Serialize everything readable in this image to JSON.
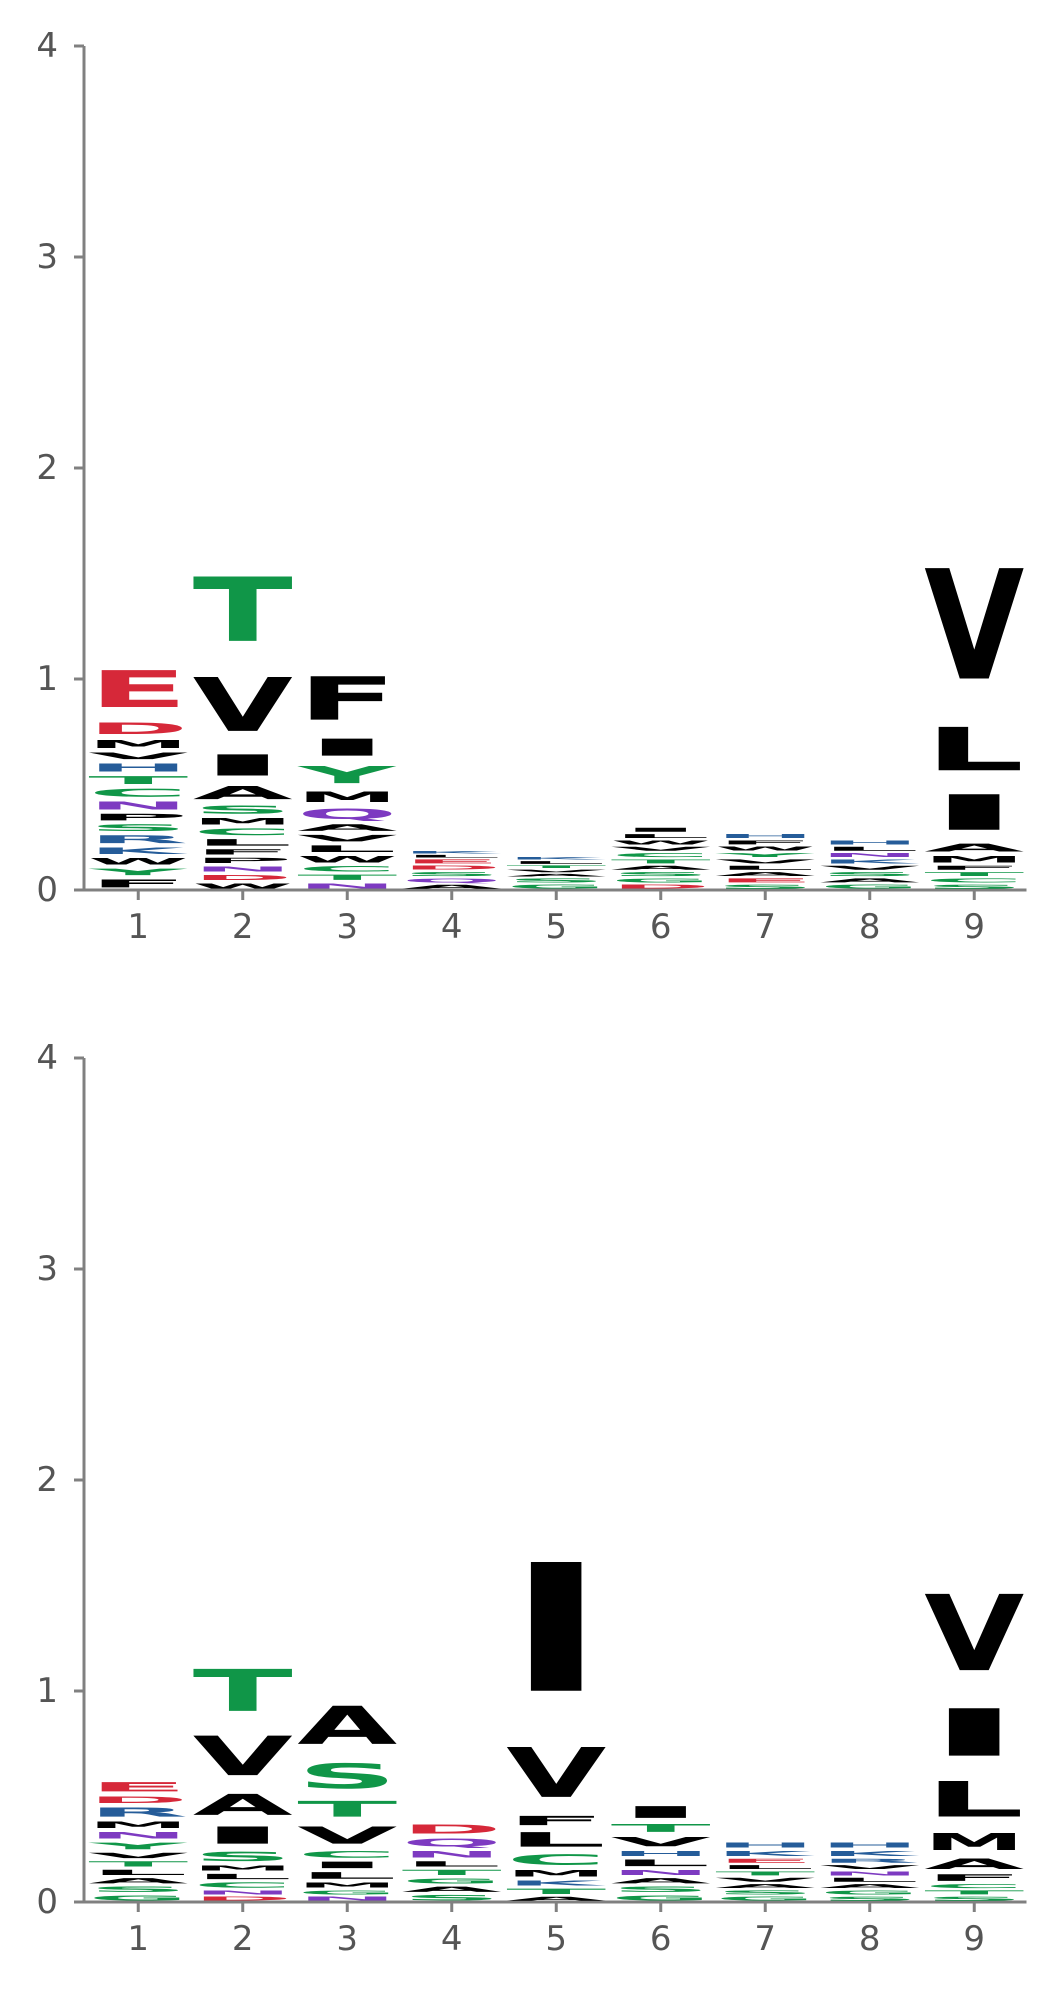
{
  "chart_data": [
    {
      "type": "sequence-logo",
      "title": "",
      "xlabel": "",
      "ylabel": "",
      "ylim": [
        0,
        4
      ],
      "yticks": [
        0,
        1,
        2,
        3,
        4
      ],
      "positions": [
        1,
        2,
        3,
        4,
        5,
        6,
        7,
        8,
        9
      ],
      "stacks": [
        [
          [
            "F",
            0.06,
            "#000000"
          ],
          [
            "Y",
            0.05,
            "#109648"
          ],
          [
            "W",
            0.05,
            "#000000"
          ],
          [
            "K",
            0.05,
            "#255C99"
          ],
          [
            "R",
            0.06,
            "#255C99"
          ],
          [
            "S",
            0.05,
            "#109648"
          ],
          [
            "P",
            0.05,
            "#000000"
          ],
          [
            "N",
            0.06,
            "#7D3AC1"
          ],
          [
            "C",
            0.06,
            "#109648"
          ],
          [
            "T",
            0.06,
            "#109648"
          ],
          [
            "H",
            0.06,
            "#255C99"
          ],
          [
            "V",
            0.05,
            "#000000"
          ],
          [
            "M",
            0.06,
            "#000000"
          ],
          [
            "D",
            0.09,
            "#D62839"
          ],
          [
            "E",
            0.28,
            "#D62839"
          ]
        ],
        [
          [
            "W",
            0.04,
            "#000000"
          ],
          [
            "D",
            0.04,
            "#D62839"
          ],
          [
            "N",
            0.04,
            "#7D3AC1"
          ],
          [
            "P",
            0.04,
            "#000000"
          ],
          [
            "F",
            0.04,
            "#000000"
          ],
          [
            "L",
            0.05,
            "#000000"
          ],
          [
            "C",
            0.05,
            "#109648"
          ],
          [
            "M",
            0.05,
            "#000000"
          ],
          [
            "S",
            0.06,
            "#109648"
          ],
          [
            "A",
            0.1,
            "#000000"
          ],
          [
            "I",
            0.16,
            "#000000"
          ],
          [
            "V",
            0.41,
            "#000000"
          ],
          [
            "T",
            0.49,
            "#109648"
          ]
        ],
        [
          [
            "N",
            0.04,
            "#7D3AC1"
          ],
          [
            "T",
            0.04,
            "#109648"
          ],
          [
            "C",
            0.04,
            "#109648"
          ],
          [
            "W",
            0.05,
            "#000000"
          ],
          [
            "L",
            0.05,
            "#000000"
          ],
          [
            "V",
            0.05,
            "#000000"
          ],
          [
            "A",
            0.05,
            "#000000"
          ],
          [
            "Q",
            0.08,
            "#7D3AC1"
          ],
          [
            "M",
            0.08,
            "#000000"
          ],
          [
            "Y",
            0.13,
            "#109648"
          ],
          [
            "I",
            0.13,
            "#000000"
          ],
          [
            "F",
            0.33,
            "#000000"
          ]
        ],
        [
          [
            "A",
            0.03,
            "#000000"
          ],
          [
            "Q",
            0.03,
            "#7D3AC1"
          ],
          [
            "S",
            0.03,
            "#109648"
          ],
          [
            "D",
            0.03,
            "#D62839"
          ],
          [
            "E",
            0.03,
            "#D62839"
          ],
          [
            "L",
            0.02,
            "#000000"
          ],
          [
            "K",
            0.02,
            "#255C99"
          ]
        ],
        [
          [
            "G",
            0.03,
            "#109648"
          ],
          [
            "S",
            0.03,
            "#109648"
          ],
          [
            "A",
            0.02,
            "#000000"
          ],
          [
            "V",
            0.02,
            "#000000"
          ],
          [
            "T",
            0.02,
            "#109648"
          ],
          [
            "L",
            0.02,
            "#000000"
          ],
          [
            "K",
            0.02,
            "#255C99"
          ]
        ],
        [
          [
            "D",
            0.03,
            "#D62839"
          ],
          [
            "G",
            0.03,
            "#109648"
          ],
          [
            "S",
            0.03,
            "#109648"
          ],
          [
            "A",
            0.03,
            "#000000"
          ],
          [
            "T",
            0.03,
            "#109648"
          ],
          [
            "C",
            0.03,
            "#109648"
          ],
          [
            "V",
            0.03,
            "#000000"
          ],
          [
            "W",
            0.03,
            "#000000"
          ],
          [
            "L",
            0.03,
            "#000000"
          ],
          [
            "I",
            0.03,
            "#000000"
          ]
        ],
        [
          [
            "S",
            0.03,
            "#109648"
          ],
          [
            "E",
            0.03,
            "#D62839"
          ],
          [
            "A",
            0.03,
            "#000000"
          ],
          [
            "L",
            0.03,
            "#000000"
          ],
          [
            "V",
            0.03,
            "#000000"
          ],
          [
            "Y",
            0.03,
            "#109648"
          ],
          [
            "W",
            0.03,
            "#000000"
          ],
          [
            "F",
            0.03,
            "#000000"
          ],
          [
            "H",
            0.03,
            "#255C99"
          ]
        ],
        [
          [
            "G",
            0.03,
            "#109648"
          ],
          [
            "A",
            0.03,
            "#000000"
          ],
          [
            "S",
            0.03,
            "#109648"
          ],
          [
            "V",
            0.03,
            "#000000"
          ],
          [
            "K",
            0.03,
            "#255C99"
          ],
          [
            "N",
            0.03,
            "#7D3AC1"
          ],
          [
            "L",
            0.03,
            "#000000"
          ],
          [
            "H",
            0.03,
            "#255C99"
          ]
        ],
        [
          [
            "S",
            0.03,
            "#109648"
          ],
          [
            "C",
            0.03,
            "#109648"
          ],
          [
            "T",
            0.03,
            "#109648"
          ],
          [
            "F",
            0.03,
            "#000000"
          ],
          [
            "M",
            0.05,
            "#000000"
          ],
          [
            "A",
            0.06,
            "#000000"
          ],
          [
            "I",
            0.27,
            "#000000"
          ],
          [
            "L",
            0.33,
            "#000000"
          ],
          [
            "V",
            0.84,
            "#000000"
          ]
        ]
      ]
    },
    {
      "type": "sequence-logo",
      "title": "",
      "xlabel": "",
      "ylabel": "",
      "ylim": [
        0,
        4
      ],
      "yticks": [
        0,
        1,
        2,
        3,
        4
      ],
      "positions": [
        1,
        2,
        3,
        4,
        5,
        6,
        7,
        8,
        9
      ],
      "stacks": [
        [
          [
            "G",
            0.04,
            "#109648"
          ],
          [
            "S",
            0.04,
            "#109648"
          ],
          [
            "A",
            0.04,
            "#000000"
          ],
          [
            "L",
            0.04,
            "#000000"
          ],
          [
            "T",
            0.04,
            "#109648"
          ],
          [
            "V",
            0.04,
            "#000000"
          ],
          [
            "Y",
            0.05,
            "#109648"
          ],
          [
            "N",
            0.05,
            "#7D3AC1"
          ],
          [
            "M",
            0.05,
            "#000000"
          ],
          [
            "R",
            0.07,
            "#255C99"
          ],
          [
            "D",
            0.05,
            "#D62839"
          ],
          [
            "E",
            0.07,
            "#D62839"
          ]
        ],
        [
          [
            "D",
            0.03,
            "#D62839"
          ],
          [
            "N",
            0.03,
            "#7D3AC1"
          ],
          [
            "C",
            0.04,
            "#109648"
          ],
          [
            "L",
            0.04,
            "#000000"
          ],
          [
            "M",
            0.04,
            "#000000"
          ],
          [
            "S",
            0.07,
            "#109648"
          ],
          [
            "I",
            0.13,
            "#000000"
          ],
          [
            "A",
            0.16,
            "#000000"
          ],
          [
            "V",
            0.3,
            "#000000"
          ],
          [
            "T",
            0.32,
            "#109648"
          ]
        ],
        [
          [
            "N",
            0.03,
            "#7D3AC1"
          ],
          [
            "G",
            0.03,
            "#109648"
          ],
          [
            "M",
            0.04,
            "#000000"
          ],
          [
            "L",
            0.05,
            "#000000"
          ],
          [
            "I",
            0.05,
            "#000000"
          ],
          [
            "C",
            0.05,
            "#109648"
          ],
          [
            "V",
            0.13,
            "#000000"
          ],
          [
            "T",
            0.12,
            "#109648"
          ],
          [
            "S",
            0.19,
            "#109648"
          ],
          [
            "A",
            0.29,
            "#000000"
          ]
        ],
        [
          [
            "S",
            0.04,
            "#109648"
          ],
          [
            "A",
            0.04,
            "#000000"
          ],
          [
            "G",
            0.04,
            "#109648"
          ],
          [
            "T",
            0.04,
            "#109648"
          ],
          [
            "L",
            0.04,
            "#000000"
          ],
          [
            "N",
            0.05,
            "#7D3AC1"
          ],
          [
            "Q",
            0.06,
            "#7D3AC1"
          ],
          [
            "D",
            0.07,
            "#D62839"
          ]
        ],
        [
          [
            "A",
            0.03,
            "#000000"
          ],
          [
            "T",
            0.04,
            "#109648"
          ],
          [
            "K",
            0.04,
            "#255C99"
          ],
          [
            "M",
            0.05,
            "#000000"
          ],
          [
            "C",
            0.08,
            "#109648"
          ],
          [
            "L",
            0.11,
            "#000000"
          ],
          [
            "F",
            0.07,
            "#000000"
          ],
          [
            "V",
            0.38,
            "#000000"
          ],
          [
            "I",
            0.98,
            "#000000"
          ]
        ],
        [
          [
            "G",
            0.04,
            "#109648"
          ],
          [
            "S",
            0.04,
            "#109648"
          ],
          [
            "A",
            0.04,
            "#000000"
          ],
          [
            "N",
            0.04,
            "#7D3AC1"
          ],
          [
            "L",
            0.05,
            "#000000"
          ],
          [
            "H",
            0.04,
            "#255C99"
          ],
          [
            "V",
            0.07,
            "#000000"
          ],
          [
            "T",
            0.06,
            "#109648"
          ],
          [
            "I",
            0.09,
            "#000000"
          ]
        ],
        [
          [
            "G",
            0.03,
            "#109648"
          ],
          [
            "S",
            0.03,
            "#109648"
          ],
          [
            "A",
            0.03,
            "#000000"
          ],
          [
            "V",
            0.03,
            "#000000"
          ],
          [
            "T",
            0.03,
            "#109648"
          ],
          [
            "L",
            0.03,
            "#000000"
          ],
          [
            "E",
            0.03,
            "#D62839"
          ],
          [
            "K",
            0.04,
            "#255C99"
          ],
          [
            "H",
            0.04,
            "#255C99"
          ]
        ],
        [
          [
            "S",
            0.03,
            "#109648"
          ],
          [
            "G",
            0.03,
            "#109648"
          ],
          [
            "A",
            0.03,
            "#000000"
          ],
          [
            "L",
            0.03,
            "#000000"
          ],
          [
            "N",
            0.03,
            "#7D3AC1"
          ],
          [
            "V",
            0.03,
            "#000000"
          ],
          [
            "R",
            0.03,
            "#255C99"
          ],
          [
            "K",
            0.04,
            "#255C99"
          ],
          [
            "H",
            0.04,
            "#255C99"
          ]
        ],
        [
          [
            "S",
            0.03,
            "#109648"
          ],
          [
            "T",
            0.03,
            "#109648"
          ],
          [
            "C",
            0.03,
            "#109648"
          ],
          [
            "F",
            0.05,
            "#000000"
          ],
          [
            "A",
            0.08,
            "#000000"
          ],
          [
            "M",
            0.13,
            "#000000"
          ],
          [
            "L",
            0.27,
            "#000000"
          ],
          [
            "I",
            0.36,
            "#000000"
          ],
          [
            "V",
            0.58,
            "#000000"
          ]
        ]
      ]
    }
  ]
}
